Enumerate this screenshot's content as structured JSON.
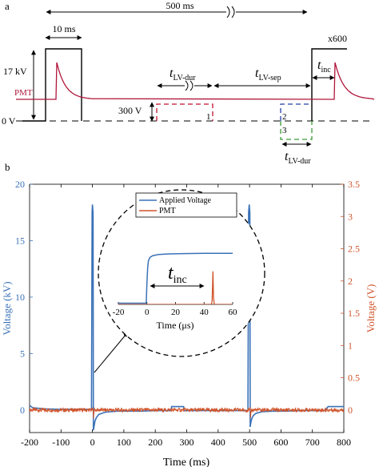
{
  "panel_a": {
    "label": "a",
    "timing": {
      "period": "500 ms",
      "pulse_width": "10 ms",
      "hv_label": "17 kV",
      "pmt_label": "PMT",
      "zero_label": "0 V",
      "lv_label": "300 V",
      "repeat": "x600",
      "t_lv_dur": {
        "base": "t",
        "sub": "LV-dur"
      },
      "t_lv_sep": {
        "base": "t",
        "sub": "LV-sep"
      },
      "t_inc": {
        "base": "t",
        "sub": "inc"
      },
      "t_lv_dur_bottom": {
        "base": "t",
        "sub": "LV-dur"
      },
      "option_1": "1",
      "option_2": "2",
      "option_3": "3"
    },
    "colors": {
      "pmt": "#b0163a",
      "option1": "#c2122e",
      "option2": "#2540a8",
      "option3": "#3a9a35",
      "line": "#000000"
    }
  },
  "panel_b": {
    "label": "b",
    "colors": {
      "voltage": "#3a72b8",
      "pmt": "#d0542a"
    },
    "chart_data": {
      "type": "line",
      "xlabel": "Time (ms)",
      "ylabel_left": "Voltage (kV)",
      "ylabel_right": "Voltage (V)",
      "xlim": [
        -200,
        800
      ],
      "ylim_left": [
        -2,
        20
      ],
      "ylim_right": [
        -0.35,
        3.5
      ],
      "x_ticks": [
        -200,
        -100,
        0,
        100,
        200,
        300,
        400,
        500,
        600,
        700,
        800
      ],
      "y_ticks_left": [
        0,
        5,
        10,
        15,
        20
      ],
      "y_ticks_right": [
        0,
        0.5,
        1,
        1.5,
        2,
        2.5,
        3,
        3.5
      ],
      "series": [
        {
          "name": "Applied Voltage",
          "x": [
            -200,
            -190,
            -150,
            -100,
            -50,
            -10,
            -3,
            -1,
            0,
            1,
            2,
            3,
            5,
            8,
            12,
            20,
            40,
            80,
            120,
            160,
            200,
            240,
            250,
            252,
            290,
            292,
            300,
            350,
            400,
            450,
            495,
            497,
            499,
            500,
            501,
            502,
            503,
            505,
            508,
            512,
            520,
            540,
            580,
            620,
            660,
            700,
            740,
            750,
            752,
            800
          ],
          "values": [
            0.4,
            0.2,
            0.1,
            0.05,
            0.05,
            0.05,
            0.1,
            17.5,
            18.2,
            17.8,
            17.5,
            -1.8,
            -1.5,
            -1.0,
            -0.7,
            -0.4,
            -0.2,
            -0.1,
            -0.1,
            -0.1,
            -0.05,
            -0.05,
            -0.05,
            0.3,
            0.3,
            -0.05,
            -0.05,
            -0.05,
            -0.05,
            -0.05,
            -0.05,
            17.5,
            18.2,
            17.8,
            17.5,
            -1.5,
            -1.3,
            -1.0,
            -0.7,
            -0.5,
            -0.3,
            -0.15,
            -0.1,
            -0.1,
            -0.05,
            -0.05,
            -0.05,
            0.3,
            0.3,
            0.3
          ]
        },
        {
          "name": "PMT",
          "x": [
            -200,
            -1,
            0,
            1,
            2,
            3,
            4,
            5,
            100,
            200,
            300,
            400,
            499,
            500,
            501,
            502,
            503,
            504,
            505,
            600,
            700,
            800
          ],
          "values": [
            0,
            0,
            0,
            0.02,
            0.05,
            -0.2,
            -0.05,
            0,
            0,
            0,
            0,
            0,
            0,
            0,
            0.02,
            0.05,
            -0.2,
            -0.05,
            0,
            0,
            0,
            0
          ]
        }
      ]
    },
    "inset": {
      "legend": [
        "Applied Voltage",
        "PMT"
      ],
      "xlabel": "Time (μs)",
      "x_ticks": [
        -20,
        0,
        20,
        40,
        60
      ],
      "t_inc": {
        "base": "t",
        "sub": "inc"
      },
      "chart_data": {
        "type": "line",
        "xlim": [
          -20,
          60
        ],
        "ylim": [
          0,
          1
        ],
        "series": [
          {
            "name": "Applied Voltage",
            "x": [
              -20,
              -0.5,
              0,
              0.5,
              1,
              2,
              4,
              8,
              15,
              25,
              40,
              60
            ],
            "values": [
              0.02,
              0.02,
              0.35,
              0.6,
              0.72,
              0.78,
              0.81,
              0.83,
              0.84,
              0.845,
              0.85,
              0.85
            ]
          },
          {
            "name": "PMT",
            "x": [
              -20,
              45,
              45.6,
              46.2,
              46.6,
              47.2,
              60
            ],
            "values": [
              0,
              0,
              0.05,
              0.55,
              0.1,
              0,
              0
            ]
          }
        ]
      }
    }
  }
}
